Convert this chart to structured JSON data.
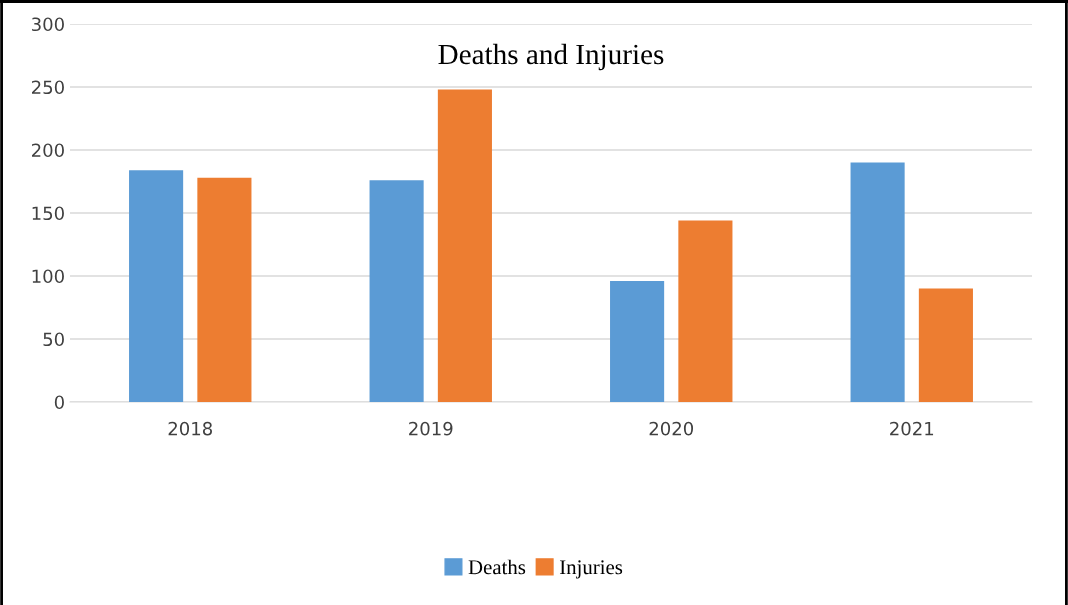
{
  "chart_data": {
    "type": "bar",
    "title": "Deaths and Injuries",
    "categories": [
      "2018",
      "2019",
      "2020",
      "2021"
    ],
    "series": [
      {
        "name": "Deaths",
        "color": "#5b9bd5",
        "values": [
          184,
          176,
          96,
          190
        ]
      },
      {
        "name": "Injuries",
        "color": "#ed7d31",
        "values": [
          178,
          248,
          144,
          90
        ]
      }
    ],
    "ylim": [
      0,
      300
    ],
    "yticks": [
      0,
      50,
      100,
      150,
      200,
      250,
      300
    ],
    "grid": "y",
    "legend": "bottom"
  }
}
